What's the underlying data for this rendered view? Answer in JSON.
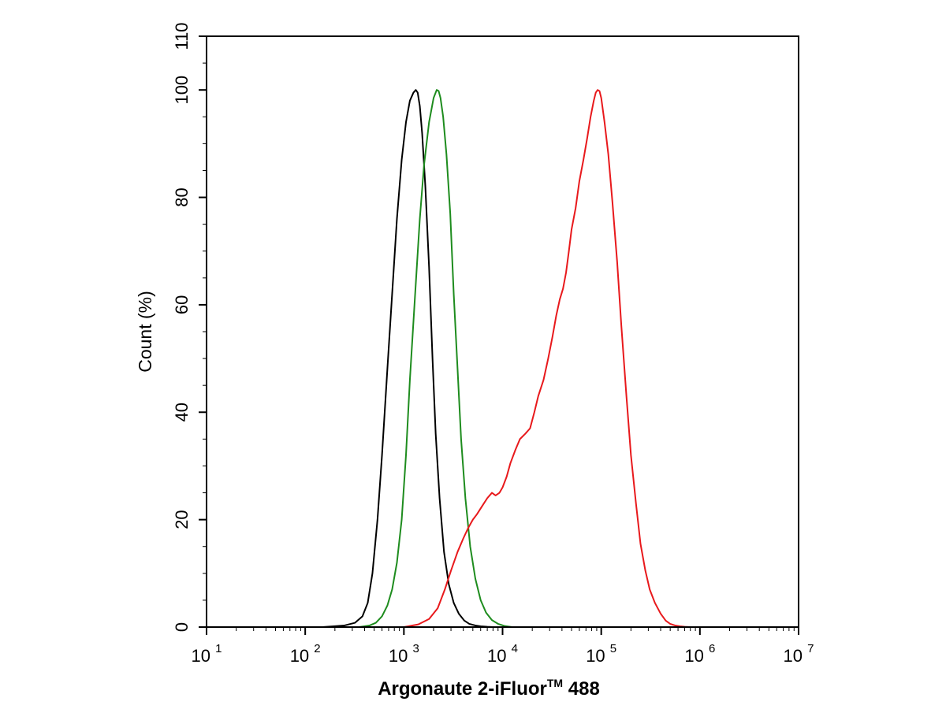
{
  "chart_data": {
    "type": "line",
    "xlabel": "Argonaute 2-iFluor™ 488",
    "xlabel_main": "Argonaute 2-iFluor",
    "xlabel_tm": "TM",
    "xlabel_tail": " 488",
    "ylabel": "Count  (%)",
    "x_scale": "log",
    "xlim": [
      10,
      10000000
    ],
    "ylim": [
      0,
      110
    ],
    "x_ticks": [
      {
        "base": "10",
        "exp": "1",
        "value": 10
      },
      {
        "base": "10",
        "exp": "2",
        "value": 100
      },
      {
        "base": "10",
        "exp": "3",
        "value": 1000
      },
      {
        "base": "10",
        "exp": "4",
        "value": 10000
      },
      {
        "base": "10",
        "exp": "5",
        "value": 100000
      },
      {
        "base": "10",
        "exp": "6",
        "value": 1000000
      },
      {
        "base": "10",
        "exp": "7",
        "value": 10000000
      }
    ],
    "y_ticks": [
      "0",
      "20",
      "40",
      "60",
      "80",
      "100",
      "110"
    ],
    "y_tick_values": [
      0,
      20,
      40,
      60,
      80,
      100,
      110
    ],
    "grid": false,
    "legend": "none",
    "series": [
      {
        "color": "#000000",
        "x": [
          150,
          250,
          320,
          380,
          430,
          480,
          540,
          600,
          680,
          760,
          850,
          950,
          1050,
          1150,
          1250,
          1320,
          1380,
          1450,
          1530,
          1650,
          1800,
          1950,
          2100,
          2300,
          2550,
          2850,
          3200,
          3600,
          4100,
          4600,
          5300,
          6000,
          7000,
          8000
        ],
        "y": [
          0,
          0.3,
          0.8,
          2,
          4.5,
          10,
          20,
          32,
          48,
          62,
          76,
          87,
          94,
          98,
          99.5,
          100,
          99.5,
          97,
          92,
          82,
          67,
          50,
          36,
          24,
          14,
          8,
          4.5,
          2.5,
          1.2,
          0.6,
          0.3,
          0.15,
          0.05,
          0
        ]
      },
      {
        "color": "#1e8c1e",
        "x": [
          350,
          450,
          520,
          600,
          680,
          760,
          850,
          950,
          1050,
          1150,
          1300,
          1450,
          1600,
          1800,
          2000,
          2150,
          2250,
          2350,
          2500,
          2700,
          2950,
          3200,
          3500,
          3800,
          4200,
          4700,
          5300,
          6000,
          6800,
          7800,
          9000,
          10500,
          12500
        ],
        "y": [
          0,
          0.3,
          0.8,
          2,
          4,
          7,
          12,
          20,
          32,
          46,
          62,
          76,
          86,
          94,
          98.5,
          100,
          99.8,
          98.5,
          95,
          88,
          77,
          62,
          48,
          35,
          24,
          15,
          9,
          5,
          2.7,
          1.3,
          0.6,
          0.2,
          0
        ]
      },
      {
        "color": "#e8191c",
        "x": [
          1000,
          1400,
          1800,
          2200,
          2600,
          3000,
          3500,
          4000,
          4500,
          5000,
          5500,
          6200,
          7000,
          7800,
          8500,
          9300,
          10000,
          11000,
          12000,
          13500,
          15000,
          17000,
          19000,
          21000,
          23000,
          26000,
          29000,
          32000,
          35000,
          38000,
          41000,
          44000,
          47000,
          50000,
          55000,
          60000,
          66000,
          72000,
          78000,
          84000,
          88000,
          92000,
          96000,
          100000,
          108000,
          118000,
          130000,
          145000,
          160000,
          180000,
          200000,
          225000,
          250000,
          280000,
          310000,
          350000,
          400000,
          450000,
          500000,
          560000,
          630000,
          700000,
          800000,
          900000,
          1000000
        ],
        "y": [
          0,
          0.5,
          1.5,
          3.5,
          7,
          10.5,
          14,
          16.5,
          18.5,
          20,
          21,
          22.5,
          24,
          25,
          24.5,
          25,
          26,
          28,
          30.5,
          33,
          35,
          36,
          37,
          40,
          43,
          46,
          50,
          54,
          58,
          61,
          63,
          66,
          70,
          74,
          78,
          83,
          87,
          91,
          95,
          98,
          99.5,
          100,
          99.8,
          98.5,
          94,
          88,
          79,
          68,
          56,
          43,
          32,
          23,
          15.5,
          10.5,
          7,
          4.5,
          2.5,
          1.2,
          0.6,
          0.3,
          0.15,
          0.05,
          0,
          0,
          0
        ]
      }
    ]
  }
}
